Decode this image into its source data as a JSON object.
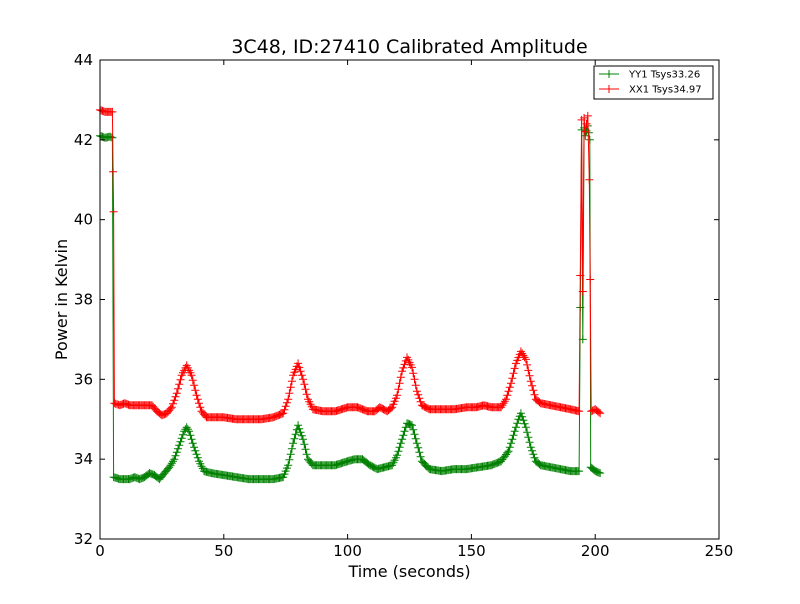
{
  "chart_data": {
    "type": "line",
    "title": "3C48, ID:27410 Calibrated Amplitude",
    "xlabel": "Time (seconds)",
    "ylabel": "Power in Kelvin",
    "xlim": [
      0,
      250
    ],
    "ylim": [
      32,
      44
    ],
    "xticks": [
      0,
      50,
      100,
      150,
      200,
      250
    ],
    "yticks": [
      32,
      34,
      36,
      38,
      40,
      42,
      44
    ],
    "xtick_labels": [
      "0",
      "50",
      "100",
      "150",
      "200",
      "250"
    ],
    "ytick_labels": [
      "32",
      "34",
      "36",
      "38",
      "40",
      "42",
      "44"
    ],
    "grid": false,
    "legend": {
      "position": "top-right"
    },
    "marker": "+",
    "series": [
      {
        "name": "YY1 Tsys33.26",
        "color": "#008000",
        "points": [
          [
            0,
            42.1
          ],
          [
            2,
            42.05
          ],
          [
            4,
            42.08
          ],
          [
            5,
            42.05
          ],
          [
            5.5,
            33.55
          ],
          [
            8,
            33.5
          ],
          [
            10,
            33.5
          ],
          [
            12,
            33.5
          ],
          [
            14,
            33.55
          ],
          [
            16,
            33.5
          ],
          [
            18,
            33.55
          ],
          [
            20,
            33.65
          ],
          [
            22,
            33.6
          ],
          [
            24,
            33.5
          ],
          [
            26,
            33.65
          ],
          [
            28,
            33.8
          ],
          [
            30,
            34.0
          ],
          [
            32,
            34.35
          ],
          [
            34,
            34.7
          ],
          [
            35,
            34.8
          ],
          [
            36,
            34.7
          ],
          [
            38,
            34.3
          ],
          [
            40,
            33.95
          ],
          [
            42,
            33.7
          ],
          [
            45,
            33.65
          ],
          [
            50,
            33.6
          ],
          [
            55,
            33.55
          ],
          [
            60,
            33.5
          ],
          [
            65,
            33.5
          ],
          [
            70,
            33.5
          ],
          [
            74,
            33.55
          ],
          [
            76,
            33.85
          ],
          [
            78,
            34.4
          ],
          [
            80,
            34.85
          ],
          [
            82,
            34.5
          ],
          [
            84,
            34.0
          ],
          [
            86,
            33.85
          ],
          [
            90,
            33.85
          ],
          [
            95,
            33.85
          ],
          [
            100,
            33.95
          ],
          [
            103,
            34.0
          ],
          [
            106,
            34.0
          ],
          [
            109,
            33.85
          ],
          [
            112,
            33.75
          ],
          [
            115,
            33.8
          ],
          [
            118,
            33.85
          ],
          [
            120,
            34.1
          ],
          [
            122,
            34.5
          ],
          [
            124,
            34.9
          ],
          [
            126,
            34.85
          ],
          [
            128,
            34.4
          ],
          [
            130,
            33.95
          ],
          [
            133,
            33.75
          ],
          [
            138,
            33.7
          ],
          [
            143,
            33.75
          ],
          [
            148,
            33.75
          ],
          [
            153,
            33.8
          ],
          [
            158,
            33.85
          ],
          [
            162,
            33.95
          ],
          [
            165,
            34.2
          ],
          [
            167,
            34.6
          ],
          [
            169,
            35.0
          ],
          [
            170,
            35.15
          ],
          [
            172,
            34.8
          ],
          [
            174,
            34.3
          ],
          [
            176,
            33.95
          ],
          [
            178,
            33.85
          ],
          [
            182,
            33.8
          ],
          [
            186,
            33.75
          ],
          [
            190,
            33.7
          ],
          [
            193.5,
            33.7
          ],
          [
            194,
            37.8
          ],
          [
            194.5,
            42.25
          ],
          [
            195,
            37.0
          ],
          [
            195.5,
            42.3
          ],
          [
            196,
            42.1
          ],
          [
            197,
            42.35
          ],
          [
            197.8,
            42.0
          ],
          [
            198.2,
            33.8
          ],
          [
            200,
            33.7
          ],
          [
            202,
            33.65
          ]
        ]
      },
      {
        "name": "XX1 Tsys34.97",
        "color": "#ff0000",
        "points": [
          [
            0,
            42.75
          ],
          [
            2,
            42.7
          ],
          [
            4,
            42.7
          ],
          [
            5,
            42.7
          ],
          [
            5.3,
            41.2
          ],
          [
            5.5,
            40.2
          ],
          [
            5.8,
            35.4
          ],
          [
            8,
            35.35
          ],
          [
            10,
            35.4
          ],
          [
            12,
            35.35
          ],
          [
            15,
            35.35
          ],
          [
            18,
            35.35
          ],
          [
            21,
            35.35
          ],
          [
            23,
            35.2
          ],
          [
            25,
            35.1
          ],
          [
            27,
            35.15
          ],
          [
            29,
            35.3
          ],
          [
            31,
            35.65
          ],
          [
            33,
            36.1
          ],
          [
            35,
            36.35
          ],
          [
            37,
            36.1
          ],
          [
            39,
            35.6
          ],
          [
            41,
            35.2
          ],
          [
            43,
            35.05
          ],
          [
            46,
            35.05
          ],
          [
            50,
            35.05
          ],
          [
            55,
            35.0
          ],
          [
            60,
            35.0
          ],
          [
            65,
            35.0
          ],
          [
            70,
            35.05
          ],
          [
            74,
            35.15
          ],
          [
            76,
            35.5
          ],
          [
            78,
            36.1
          ],
          [
            80,
            36.4
          ],
          [
            82,
            36.0
          ],
          [
            84,
            35.5
          ],
          [
            86,
            35.25
          ],
          [
            90,
            35.2
          ],
          [
            95,
            35.2
          ],
          [
            100,
            35.3
          ],
          [
            104,
            35.3
          ],
          [
            108,
            35.2
          ],
          [
            111,
            35.2
          ],
          [
            113,
            35.3
          ],
          [
            116,
            35.2
          ],
          [
            118,
            35.3
          ],
          [
            120,
            35.6
          ],
          [
            122,
            36.2
          ],
          [
            124,
            36.55
          ],
          [
            126,
            36.3
          ],
          [
            128,
            35.7
          ],
          [
            130,
            35.35
          ],
          [
            133,
            35.25
          ],
          [
            138,
            35.25
          ],
          [
            143,
            35.25
          ],
          [
            148,
            35.3
          ],
          [
            152,
            35.3
          ],
          [
            155,
            35.35
          ],
          [
            158,
            35.3
          ],
          [
            162,
            35.3
          ],
          [
            164,
            35.5
          ],
          [
            166,
            35.9
          ],
          [
            168,
            36.4
          ],
          [
            170,
            36.7
          ],
          [
            172,
            36.5
          ],
          [
            174,
            35.95
          ],
          [
            176,
            35.5
          ],
          [
            178,
            35.4
          ],
          [
            182,
            35.35
          ],
          [
            186,
            35.3
          ],
          [
            190,
            35.25
          ],
          [
            193.5,
            35.2
          ],
          [
            194,
            38.6
          ],
          [
            194.5,
            42.5
          ],
          [
            195,
            38.2
          ],
          [
            195.5,
            42.55
          ],
          [
            196,
            42.2
          ],
          [
            197,
            42.6
          ],
          [
            197.6,
            41.0
          ],
          [
            198,
            38.5
          ],
          [
            198.4,
            35.2
          ],
          [
            200,
            35.25
          ],
          [
            202,
            35.15
          ]
        ]
      }
    ]
  }
}
